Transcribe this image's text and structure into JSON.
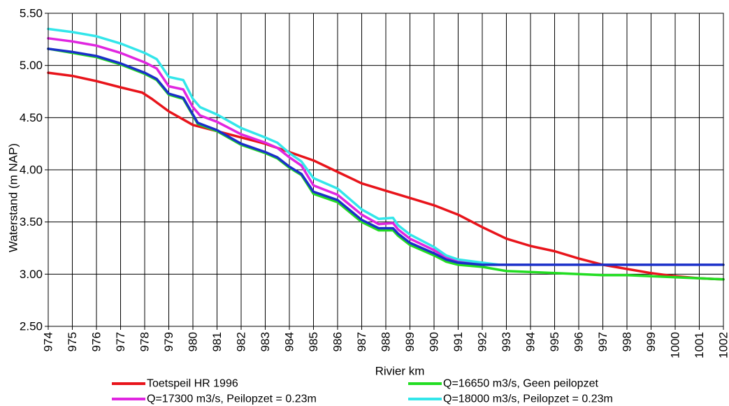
{
  "chart_data": {
    "type": "line",
    "title": "",
    "xlabel": "Rivier km",
    "ylabel": "Waterstand (m NAP)",
    "xlim": [
      974,
      1002
    ],
    "ylim": [
      2.5,
      5.5
    ],
    "x_ticks": [
      "974",
      "975",
      "976",
      "977",
      "978",
      "979",
      "980",
      "981",
      "982",
      "983",
      "984",
      "985",
      "986",
      "987",
      "988",
      "989",
      "990",
      "991",
      "992",
      "993",
      "994",
      "995",
      "996",
      "997",
      "998",
      "999",
      "1000",
      "1001",
      "1002"
    ],
    "y_ticks": [
      "5.50",
      "5.00",
      "4.50",
      "4.00",
      "3.50",
      "3.00",
      "2.50"
    ],
    "y_tick_values": [
      5.5,
      5.0,
      4.5,
      4.0,
      3.5,
      3.0,
      2.5
    ],
    "grid": true,
    "legend_position": "bottom",
    "series": [
      {
        "name": "Toetspeil HR 1996",
        "color": "#e8141b",
        "x": [
          974,
          975,
          976,
          977,
          977.9,
          978.3,
          979,
          980,
          981,
          982,
          983,
          984,
          985,
          986,
          987,
          988,
          989,
          990,
          991,
          992,
          993,
          994,
          995,
          996,
          997,
          998,
          999,
          1000,
          1001,
          1002
        ],
        "y": [
          4.93,
          4.9,
          4.85,
          4.79,
          4.74,
          4.68,
          4.56,
          4.43,
          4.37,
          4.31,
          4.25,
          4.17,
          4.09,
          3.98,
          3.87,
          3.8,
          3.73,
          3.66,
          3.57,
          3.45,
          3.34,
          3.27,
          3.22,
          3.15,
          3.09,
          3.05,
          3.01,
          2.98,
          2.96,
          2.95
        ]
      },
      {
        "name": "Q=16650 m3/s, Geen peilopzet",
        "color": "#22dd22",
        "x": [
          974,
          975,
          976,
          977,
          978,
          978.5,
          979,
          979.6,
          980,
          980.2,
          981,
          982,
          983,
          983.5,
          984,
          984.5,
          985,
          986,
          987,
          987.7,
          988.3,
          988.5,
          989,
          990,
          990.5,
          991,
          992,
          993,
          994,
          995,
          996,
          997,
          998,
          999,
          1000,
          1001,
          1002
        ],
        "y": [
          5.16,
          5.12,
          5.08,
          5.01,
          4.92,
          4.86,
          4.72,
          4.68,
          4.52,
          4.44,
          4.37,
          4.24,
          4.16,
          4.11,
          4.02,
          3.95,
          3.77,
          3.69,
          3.5,
          3.42,
          3.42,
          3.37,
          3.28,
          3.18,
          3.12,
          3.09,
          3.07,
          3.03,
          3.02,
          3.01,
          3.0,
          2.99,
          2.99,
          2.98,
          2.97,
          2.96,
          2.95
        ]
      },
      {
        "name": "Q=17300 m3/s, Peilopzet = 0.23m",
        "color": "#e026e0",
        "x": [
          974,
          975,
          976,
          977,
          978,
          978.5,
          979,
          979.6,
          980,
          980.3,
          981,
          982,
          983,
          983.5,
          984,
          984.5,
          985,
          986,
          987,
          987.7,
          988.3,
          988.5,
          989,
          990,
          990.5,
          991,
          992,
          992.5
        ],
        "y": [
          5.26,
          5.23,
          5.19,
          5.12,
          5.03,
          4.97,
          4.8,
          4.77,
          4.6,
          4.52,
          4.46,
          4.34,
          4.26,
          4.21,
          4.12,
          4.04,
          3.85,
          3.76,
          3.57,
          3.48,
          3.49,
          3.43,
          3.34,
          3.23,
          3.16,
          3.12,
          3.1,
          3.09
        ]
      },
      {
        "name": "Q=18000 m3/s, Peilopzet = 0.23m",
        "color": "#33e6ea",
        "x": [
          974,
          975,
          976,
          977,
          978,
          978.5,
          979,
          979.6,
          980,
          980.3,
          981,
          982,
          983,
          983.5,
          984,
          984.5,
          985,
          986,
          987,
          987.7,
          988.3,
          988.5,
          989,
          990,
          990.5,
          991,
          992,
          992.7
        ],
        "y": [
          5.35,
          5.32,
          5.28,
          5.21,
          5.12,
          5.06,
          4.89,
          4.86,
          4.68,
          4.6,
          4.53,
          4.4,
          4.31,
          4.26,
          4.16,
          4.08,
          3.92,
          3.82,
          3.62,
          3.53,
          3.54,
          3.47,
          3.38,
          3.26,
          3.18,
          3.14,
          3.11,
          3.09
        ]
      },
      {
        "name": "",
        "color": "#1a2fc9",
        "x": [
          974,
          975,
          976,
          977,
          978,
          978.5,
          979,
          979.6,
          980,
          980.2,
          981,
          982,
          983,
          983.5,
          984,
          984.5,
          985,
          986,
          987,
          987.7,
          988.3,
          988.5,
          989,
          990,
          990.5,
          991,
          992,
          993,
          994,
          995,
          996,
          997,
          998,
          999,
          1000,
          1001,
          1002
        ],
        "y": [
          5.16,
          5.13,
          5.09,
          5.02,
          4.93,
          4.87,
          4.73,
          4.69,
          4.53,
          4.45,
          4.38,
          4.25,
          4.17,
          4.12,
          4.03,
          3.96,
          3.79,
          3.71,
          3.52,
          3.44,
          3.44,
          3.39,
          3.3,
          3.2,
          3.14,
          3.11,
          3.09,
          3.09,
          3.09,
          3.09,
          3.09,
          3.09,
          3.09,
          3.09,
          3.09,
          3.09,
          3.09
        ]
      }
    ],
    "legend": [
      {
        "label": "Toetspeil HR 1996",
        "color": "#e8141b"
      },
      {
        "label": "Q=16650 m3/s, Geen peilopzet",
        "color": "#22dd22"
      },
      {
        "label": "Q=17300 m3/s, Peilopzet = 0.23m",
        "color": "#e026e0"
      },
      {
        "label": "Q=18000 m3/s, Peilopzet = 0.23m",
        "color": "#33e6ea"
      }
    ]
  }
}
